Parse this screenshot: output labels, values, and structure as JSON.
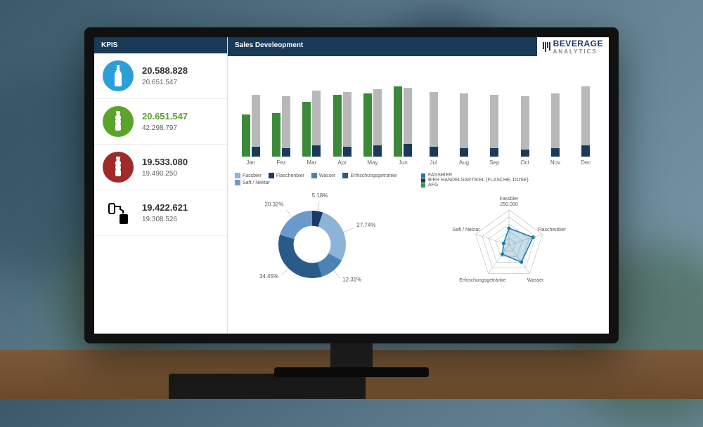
{
  "brand": {
    "line1": "BEVERAGE",
    "line2": "ANALYTICS"
  },
  "kpis": {
    "header": "KPIS",
    "items": [
      {
        "icon": "bottle-glass",
        "icon_bg": "#2aa0d8",
        "icon_fg": "#ffffff",
        "v1": "20.588.828",
        "v1_color": "#333333",
        "v2": "20.651.547"
      },
      {
        "icon": "bottle-plastic",
        "icon_bg": "#5aa42a",
        "icon_fg": "#ffffff",
        "v1": "20.651.547",
        "v1_color": "#5aa42a",
        "v2": "42.298.797"
      },
      {
        "icon": "bottle-plastic",
        "icon_bg": "#a02a2a",
        "icon_fg": "#ffffff",
        "v1": "19.533.080",
        "v1_color": "#333333",
        "v2": "19.490.250"
      },
      {
        "icon": "tap-keg",
        "icon_bg": "transparent",
        "icon_fg": "#000000",
        "v1": "19.422.621",
        "v1_color": "#333333",
        "v2": "19.308.526"
      }
    ]
  },
  "sales": {
    "header": "Sales Develeopment",
    "months": [
      "Jan",
      "Fez",
      "Mar",
      "Apr",
      "May",
      "Jun",
      "Jul",
      "Aug",
      "Sep",
      "Oct",
      "Nov",
      "Dec"
    ],
    "series_a_color": "#3a8a3a",
    "series_b_color": "#b8b8b8",
    "series_c_color": "#1a3a5a",
    "a": [
      60,
      62,
      78,
      88,
      90,
      100,
      0,
      0,
      0,
      0,
      0,
      0
    ],
    "b": [
      88,
      86,
      94,
      92,
      96,
      98,
      92,
      90,
      88,
      86,
      90,
      100
    ],
    "c": [
      14,
      12,
      16,
      14,
      16,
      18,
      14,
      12,
      12,
      10,
      12,
      16
    ],
    "ymax": 120
  },
  "donut": {
    "legend": [
      {
        "label": "Fassbier",
        "color": "#8cb4d8"
      },
      {
        "label": "Flaschenbier",
        "color": "#1a3a6a"
      },
      {
        "label": "Wasser",
        "color": "#4a84b4"
      },
      {
        "label": "Erfrischungsgetränke",
        "color": "#2a5a8a"
      },
      {
        "label": "Saft / Nektar",
        "color": "#6a9acc"
      }
    ],
    "slices": [
      {
        "label": "5.18%",
        "value": 5.18,
        "color": "#1a3a6a"
      },
      {
        "label": "27.74%",
        "value": 27.74,
        "color": "#8cb4d8"
      },
      {
        "label": "12.31%",
        "value": 12.31,
        "color": "#4a84b4"
      },
      {
        "label": "34.45%",
        "value": 34.45,
        "color": "#2a5a8a"
      },
      {
        "label": "20.32%",
        "value": 20.32,
        "color": "#6a9acc"
      }
    ],
    "inner_ratio": 0.55
  },
  "radar": {
    "legend": [
      {
        "label": "FASSBIER",
        "color": "#1a7aaa"
      },
      {
        "label": "BIER HANDELSARTIKEL (FLASCHE, DOSE)",
        "color": "#1a3a6a"
      },
      {
        "label": "AFG",
        "color": "#2a9a4a"
      }
    ],
    "axes": [
      "Fassbier",
      "Flaschenbier",
      "Wasser",
      "Erfrischungsgetränke",
      "Saft / Nektar"
    ],
    "center_label": "250.000",
    "max": 250000,
    "rings": 5,
    "series": [
      {
        "color": "#1a7aaa",
        "values": [
          120000,
          180000,
          150000,
          80000,
          40000
        ]
      }
    ],
    "grid_color": "#bbbbbb",
    "label_fontsize": 7
  },
  "colors": {
    "panel_header_bg": "#1a3a5a",
    "panel_header_fg": "#ffffff",
    "screen_bg": "#ffffff",
    "divider": "#dddddd"
  }
}
